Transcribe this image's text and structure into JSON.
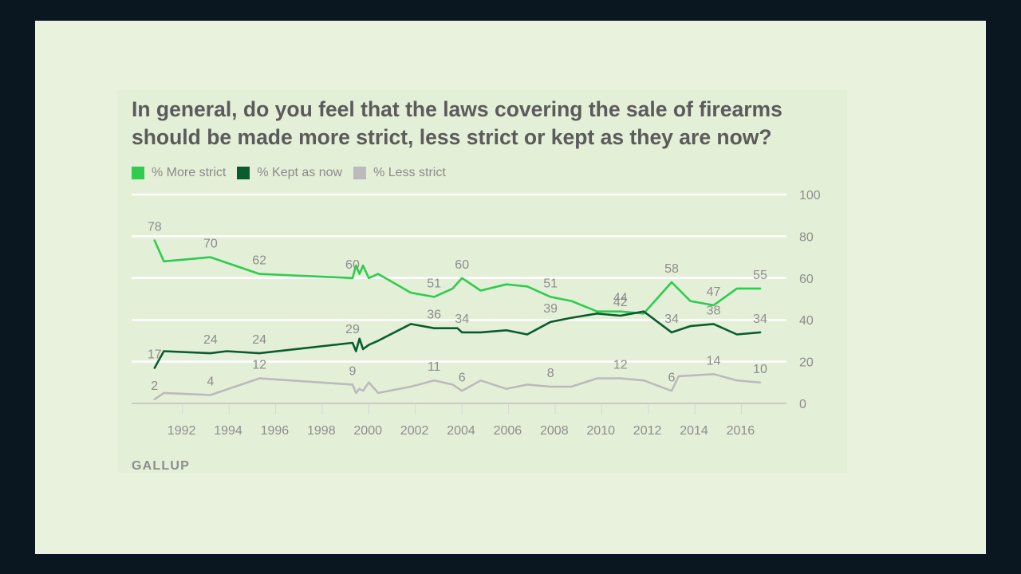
{
  "source": "GALLUP",
  "chart_data": {
    "type": "line",
    "title": "In general, do you feel that the laws covering the sale of firearms should be made more strict, less strict or kept as they are now?",
    "xlabel": "",
    "ylabel": "",
    "xlim": [
      1990.5,
      2017
    ],
    "ylim": [
      0,
      100
    ],
    "yticks": [
      0,
      20,
      40,
      60,
      80,
      100
    ],
    "xticks": [
      1992,
      1994,
      1996,
      1998,
      2000,
      2002,
      2004,
      2006,
      2008,
      2010,
      2012,
      2014,
      2016
    ],
    "grid": true,
    "legend_position": "top-left",
    "series": [
      {
        "name": "% More strict",
        "color": "#2ecc4f",
        "points": [
          [
            1990.8,
            78
          ],
          [
            1991.2,
            68
          ],
          [
            1993.2,
            70
          ],
          [
            1995.3,
            62
          ],
          [
            1999.3,
            60
          ],
          [
            1999.45,
            66
          ],
          [
            1999.6,
            62
          ],
          [
            1999.75,
            66
          ],
          [
            2000.0,
            60
          ],
          [
            2000.4,
            62
          ],
          [
            2001.8,
            53
          ],
          [
            2002.8,
            51
          ],
          [
            2003.6,
            55
          ],
          [
            2004.0,
            60
          ],
          [
            2004.8,
            54
          ],
          [
            2005.9,
            57
          ],
          [
            2006.8,
            56
          ],
          [
            2007.8,
            51
          ],
          [
            2008.7,
            49
          ],
          [
            2009.8,
            44
          ],
          [
            2010.8,
            44
          ],
          [
            2011.8,
            43
          ],
          [
            2013.0,
            58
          ],
          [
            2013.8,
            49
          ],
          [
            2014.8,
            47
          ],
          [
            2015.8,
            55
          ],
          [
            2016.8,
            55
          ]
        ]
      },
      {
        "name": "% Kept as now",
        "color": "#0a5c2f",
        "points": [
          [
            1990.8,
            17
          ],
          [
            1991.2,
            25
          ],
          [
            1993.2,
            24
          ],
          [
            1993.9,
            25
          ],
          [
            1995.3,
            24
          ],
          [
            1999.3,
            29
          ],
          [
            1999.45,
            25
          ],
          [
            1999.6,
            31
          ],
          [
            1999.75,
            26
          ],
          [
            2000.0,
            28
          ],
          [
            2000.4,
            30
          ],
          [
            2001.8,
            38
          ],
          [
            2002.8,
            36
          ],
          [
            2003.8,
            36
          ],
          [
            2004.0,
            34
          ],
          [
            2004.8,
            34
          ],
          [
            2005.9,
            35
          ],
          [
            2006.8,
            33
          ],
          [
            2007.8,
            39
          ],
          [
            2008.7,
            41
          ],
          [
            2009.8,
            43
          ],
          [
            2010.8,
            42
          ],
          [
            2011.8,
            44
          ],
          [
            2013.0,
            34
          ],
          [
            2013.8,
            37
          ],
          [
            2014.8,
            38
          ],
          [
            2015.8,
            33
          ],
          [
            2016.8,
            34
          ]
        ]
      },
      {
        "name": "% Less strict",
        "color": "#bbbbbb",
        "points": [
          [
            1990.8,
            2
          ],
          [
            1991.2,
            5
          ],
          [
            1993.2,
            4
          ],
          [
            1995.3,
            12
          ],
          [
            1999.3,
            9
          ],
          [
            1999.45,
            5
          ],
          [
            1999.6,
            7
          ],
          [
            1999.75,
            6
          ],
          [
            2000.0,
            10
          ],
          [
            2000.4,
            5
          ],
          [
            2001.8,
            8
          ],
          [
            2002.8,
            11
          ],
          [
            2003.6,
            9
          ],
          [
            2004.0,
            6
          ],
          [
            2004.8,
            11
          ],
          [
            2005.9,
            7
          ],
          [
            2006.8,
            9
          ],
          [
            2007.8,
            8
          ],
          [
            2008.7,
            8
          ],
          [
            2009.8,
            12
          ],
          [
            2010.8,
            12
          ],
          [
            2011.8,
            11
          ],
          [
            2013.0,
            6
          ],
          [
            2013.3,
            13
          ],
          [
            2014.8,
            14
          ],
          [
            2015.8,
            11
          ],
          [
            2016.8,
            10
          ]
        ]
      }
    ],
    "annotations": [
      {
        "series": 0,
        "x": 1990.8,
        "y": 78,
        "text": "78"
      },
      {
        "series": 0,
        "x": 1993.2,
        "y": 70,
        "text": "70"
      },
      {
        "series": 0,
        "x": 1995.3,
        "y": 62,
        "text": "62"
      },
      {
        "series": 0,
        "x": 1999.3,
        "y": 60,
        "text": "60"
      },
      {
        "series": 0,
        "x": 2002.8,
        "y": 51,
        "text": "51"
      },
      {
        "series": 0,
        "x": 2004.0,
        "y": 60,
        "text": "60"
      },
      {
        "series": 0,
        "x": 2007.8,
        "y": 51,
        "text": "51"
      },
      {
        "series": 0,
        "x": 2010.8,
        "y": 44,
        "text": "44"
      },
      {
        "series": 0,
        "x": 2013.0,
        "y": 58,
        "text": "58"
      },
      {
        "series": 0,
        "x": 2014.8,
        "y": 47,
        "text": "47"
      },
      {
        "series": 0,
        "x": 2016.8,
        "y": 55,
        "text": "55"
      },
      {
        "series": 1,
        "x": 1990.8,
        "y": 17,
        "text": "17"
      },
      {
        "series": 1,
        "x": 1993.2,
        "y": 24,
        "text": "24"
      },
      {
        "series": 1,
        "x": 1995.3,
        "y": 24,
        "text": "24"
      },
      {
        "series": 1,
        "x": 1999.3,
        "y": 29,
        "text": "29"
      },
      {
        "series": 1,
        "x": 2002.8,
        "y": 36,
        "text": "36"
      },
      {
        "series": 1,
        "x": 2004.0,
        "y": 34,
        "text": "34"
      },
      {
        "series": 1,
        "x": 2007.8,
        "y": 39,
        "text": "39"
      },
      {
        "series": 1,
        "x": 2010.8,
        "y": 42,
        "text": "42"
      },
      {
        "series": 1,
        "x": 2013.0,
        "y": 34,
        "text": "34"
      },
      {
        "series": 1,
        "x": 2014.8,
        "y": 38,
        "text": "38"
      },
      {
        "series": 1,
        "x": 2016.8,
        "y": 34,
        "text": "34"
      },
      {
        "series": 2,
        "x": 1990.8,
        "y": 2,
        "text": "2"
      },
      {
        "series": 2,
        "x": 1993.2,
        "y": 4,
        "text": "4"
      },
      {
        "series": 2,
        "x": 1995.3,
        "y": 12,
        "text": "12"
      },
      {
        "series": 2,
        "x": 1999.3,
        "y": 9,
        "text": "9"
      },
      {
        "series": 2,
        "x": 2002.8,
        "y": 11,
        "text": "11"
      },
      {
        "series": 2,
        "x": 2004.0,
        "y": 6,
        "text": "6"
      },
      {
        "series": 2,
        "x": 2007.8,
        "y": 8,
        "text": "8"
      },
      {
        "series": 2,
        "x": 2010.8,
        "y": 12,
        "text": "12"
      },
      {
        "series": 2,
        "x": 2013.0,
        "y": 6,
        "text": "6"
      },
      {
        "series": 2,
        "x": 2014.8,
        "y": 14,
        "text": "14"
      },
      {
        "series": 2,
        "x": 2016.8,
        "y": 10,
        "text": "10"
      }
    ]
  }
}
